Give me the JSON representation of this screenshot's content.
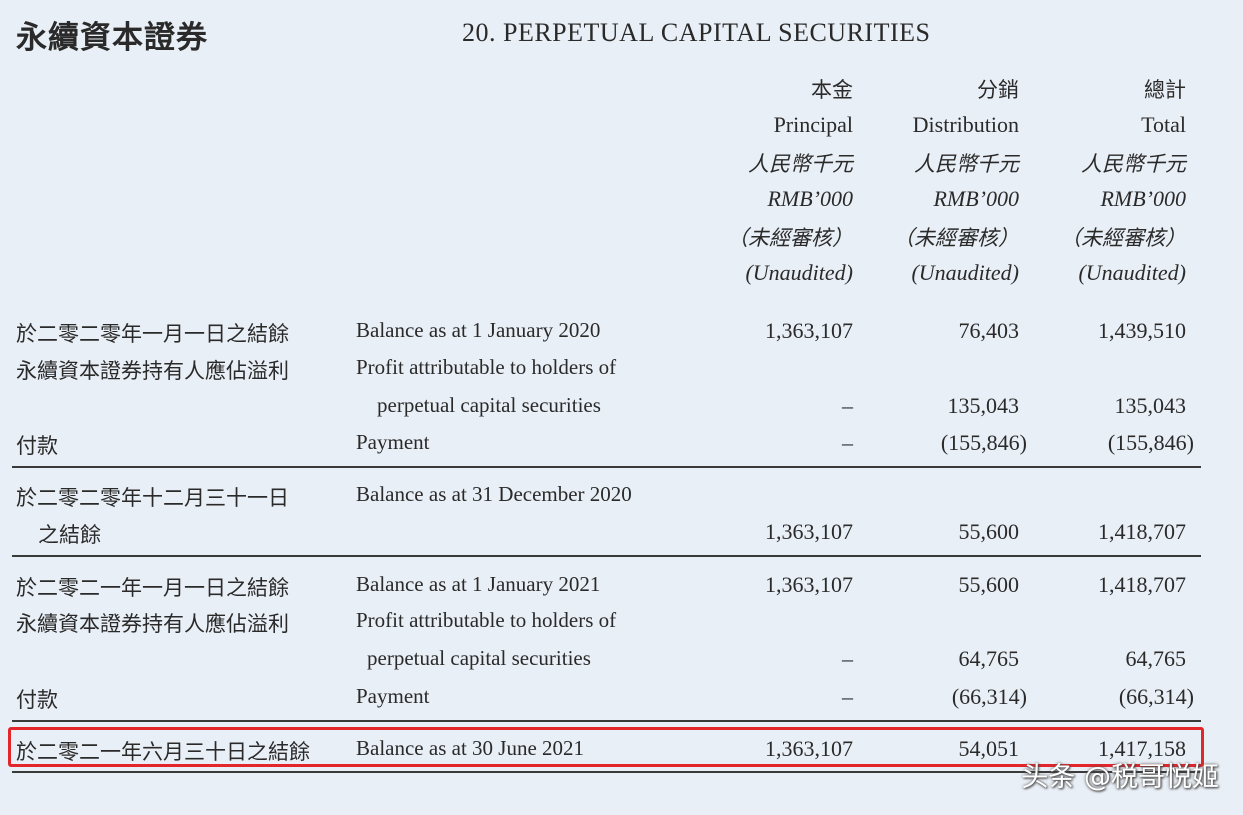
{
  "header": {
    "title_cn": "永續資本證券",
    "title_en": "20.   PERPETUAL CAPITAL SECURITIES"
  },
  "columns": [
    {
      "cn": "本金",
      "en": "Principal",
      "unit_cn": "人民幣千元",
      "unit_en": "RMB’000",
      "audit_cn": "（未經審核）",
      "audit_en": "(Unaudited)"
    },
    {
      "cn": "分銷",
      "en": "Distribution",
      "unit_cn": "人民幣千元",
      "unit_en": "RMB’000",
      "audit_cn": "（未經審核）",
      "audit_en": "(Unaudited)"
    },
    {
      "cn": "總計",
      "en": "Total",
      "unit_cn": "人民幣千元",
      "unit_en": "RMB’000",
      "audit_cn": "（未經審核）",
      "audit_en": "(Unaudited)"
    }
  ],
  "rows": [
    {
      "cn": "於二零二零年一月一日之結餘",
      "en": "Balance as at 1 January 2020",
      "v1": "1,363,107",
      "v2": "76,403",
      "v3": "1,439,510"
    },
    {
      "cn": "永續資本證券持有人應佔溢利",
      "en": "Profit attributable to holders of",
      "en2": "perpetual capital securities",
      "v1": "–",
      "v2": "135,043",
      "v3": "135,043"
    },
    {
      "cn": "付款",
      "en": "Payment",
      "v1": "–",
      "v2": "(155,846)",
      "v3": "(155,846)"
    },
    {
      "cn": "於二零二零年十二月三十一日",
      "cn2": "之結餘",
      "en": "Balance as at 31 December 2020",
      "v1": "1,363,107",
      "v2": "55,600",
      "v3": "1,418,707"
    },
    {
      "cn": "於二零二一年一月一日之結餘",
      "en": "Balance as at 1 January 2021",
      "v1": "1,363,107",
      "v2": "55,600",
      "v3": "1,418,707"
    },
    {
      "cn": "永續資本證券持有人應佔溢利",
      "en": "Profit attributable to holders of",
      "en2": "perpetual capital securities",
      "v1": "–",
      "v2": "64,765",
      "v3": "64,765"
    },
    {
      "cn": "付款",
      "en": "Payment",
      "v1": "–",
      "v2": "(66,314)",
      "v3": "(66,314)"
    },
    {
      "cn": "於二零二一年六月三十日之結餘",
      "en": "Balance as at 30 June 2021",
      "v1": "1,363,107",
      "v2": "54,051",
      "v3": "1,417,158"
    }
  ],
  "watermark": "头条 @税哥悦姬",
  "colors": {
    "highlight": "#e3262c",
    "background": "#e9eff6"
  }
}
